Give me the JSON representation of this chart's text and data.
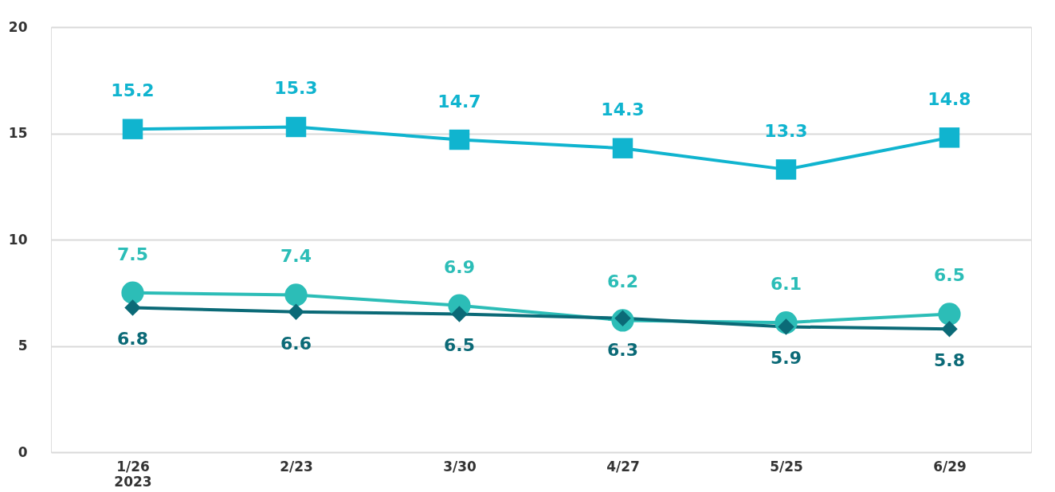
{
  "chart_data": {
    "type": "line",
    "categories": [
      "1/26\n2023",
      "2/23",
      "3/30",
      "4/27",
      "5/25",
      "6/29"
    ],
    "series": [
      {
        "color": "#10b4cf",
        "marker": "square",
        "values": [
          15.2,
          15.3,
          14.7,
          14.3,
          13.3,
          14.8
        ]
      },
      {
        "color": "#2cbdb7",
        "marker": "circle",
        "values": [
          7.5,
          7.4,
          6.9,
          6.2,
          6.1,
          6.5
        ]
      },
      {
        "color": "#0b6a77",
        "marker": "diamond",
        "values": [
          6.8,
          6.6,
          6.5,
          6.3,
          5.9,
          5.8
        ]
      }
    ],
    "ylim": [
      0,
      20
    ],
    "yticks": [
      0,
      5,
      10,
      15,
      20
    ],
    "grid": "y",
    "data_labels": true,
    "legend": false,
    "line_style": "solid"
  }
}
